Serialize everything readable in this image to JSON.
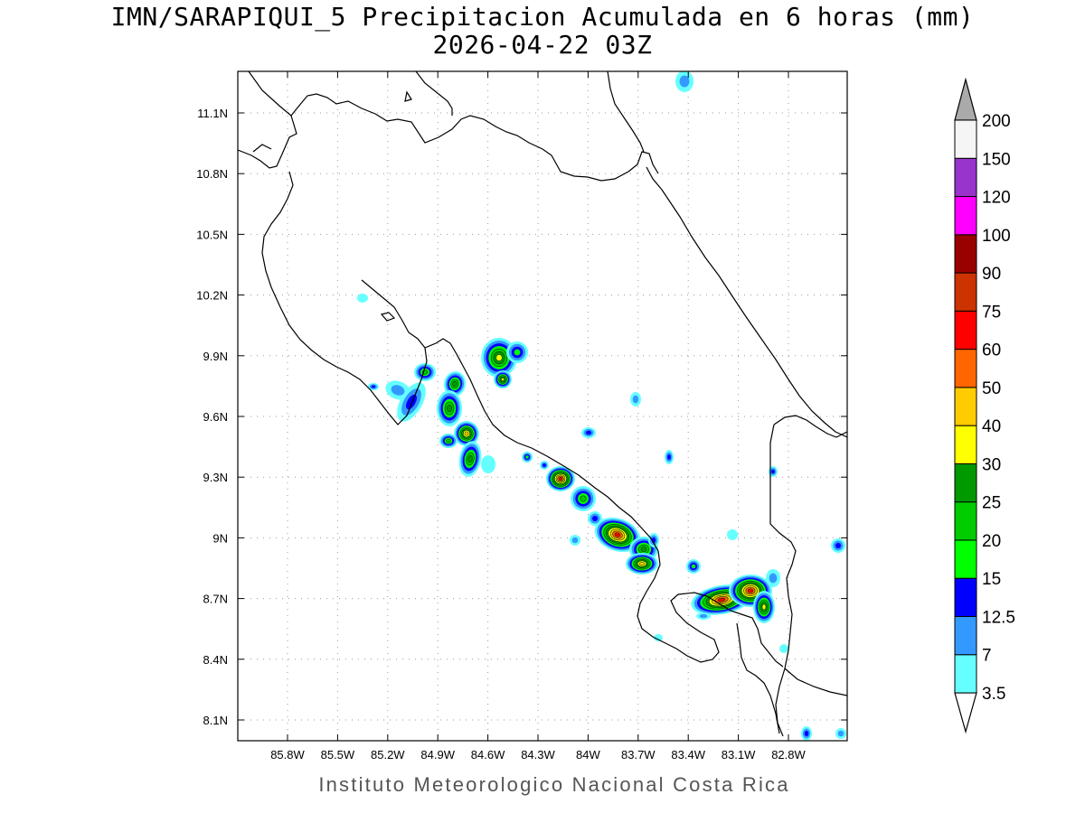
{
  "title": "IMN/SARAPIQUI_5 Precipitacion Acumulada en 6 horas (mm)",
  "subtitle": "2026-04-22 03Z",
  "footer": "Instituto Meteorologico Nacional Costa Rica",
  "map": {
    "lon_ticks": [
      "85.8W",
      "85.5W",
      "85.2W",
      "84.9W",
      "84.6W",
      "84.3W",
      "84W",
      "83.7W",
      "83.4W",
      "83.1W",
      "82.8W"
    ],
    "lat_ticks": [
      "11.1N",
      "10.8N",
      "10.5N",
      "10.2N",
      "9.9N",
      "9.6N",
      "9.3N",
      "9N",
      "8.7N",
      "8.4N",
      "8.1N"
    ],
    "grid": true,
    "grid_style": "dotted"
  },
  "colorbar": {
    "levels": [
      "3.5",
      "7",
      "12.5",
      "15",
      "20",
      "25",
      "30",
      "40",
      "50",
      "60",
      "75",
      "90",
      "100",
      "120",
      "150",
      "200"
    ],
    "colors": [
      "#66ffff",
      "#3399ff",
      "#0000ff",
      "#00ff00",
      "#00cc00",
      "#009900",
      "#ffff00",
      "#ffcc00",
      "#ff6600",
      "#ff0000",
      "#cc3300",
      "#990000",
      "#ff00ff",
      "#9933cc",
      "#f5f5f5"
    ],
    "min_arrow_color": "#ffffff",
    "max_arrow_color": "#aaaaaa"
  }
}
